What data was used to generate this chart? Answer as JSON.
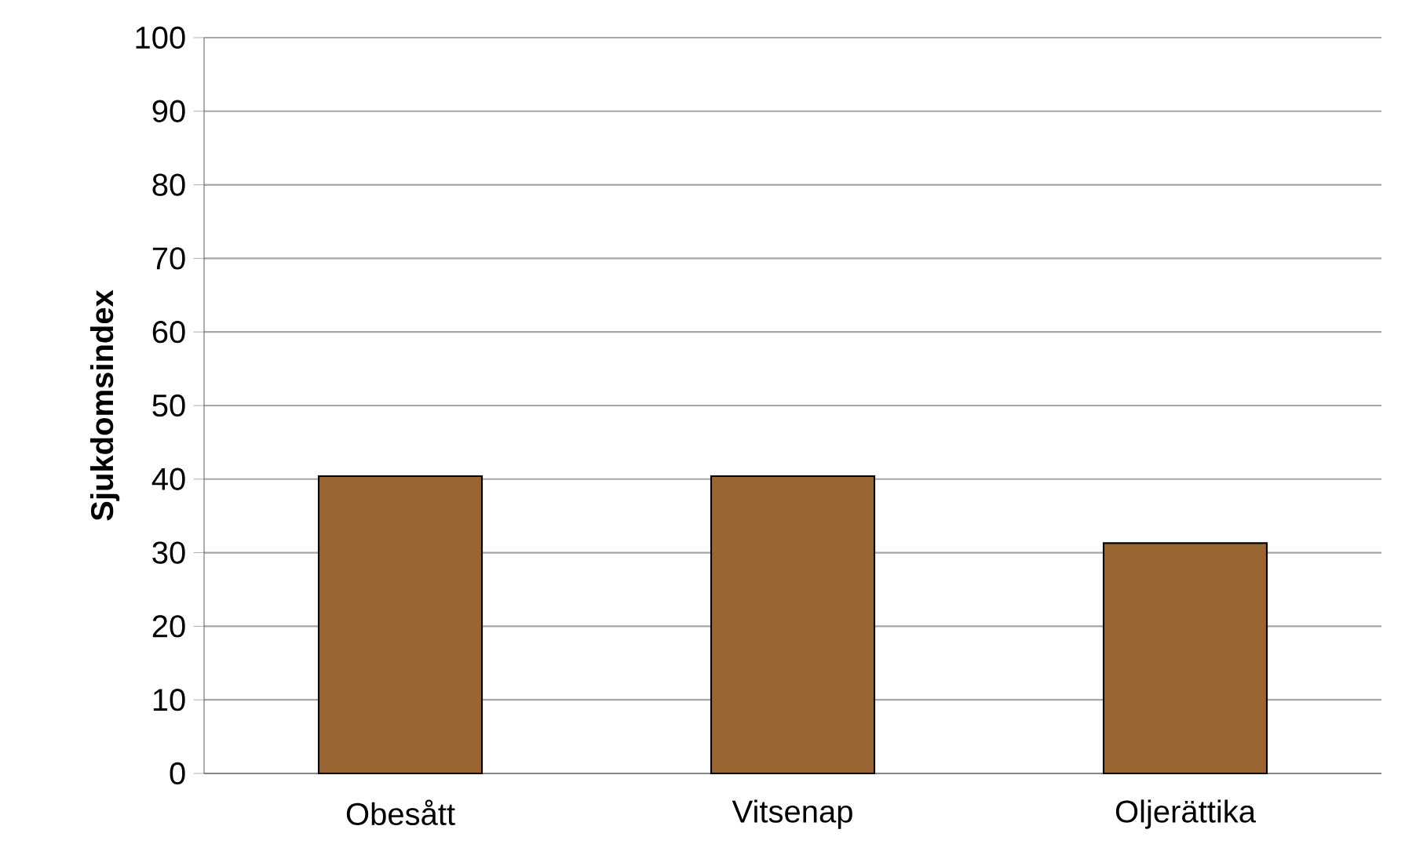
{
  "chart_data": {
    "type": "bar",
    "ylabel": "Sjukdomsindex",
    "categories": [
      "Obesått",
      "Vitsenap",
      "Oljerättika"
    ],
    "values": [
      40.4,
      40.4,
      31.3
    ],
    "color": "#996633",
    "ylim": [
      0,
      100
    ],
    "yticks": [
      0,
      10,
      20,
      30,
      40,
      50,
      60,
      70,
      80,
      90,
      100
    ],
    "grid": "y"
  }
}
